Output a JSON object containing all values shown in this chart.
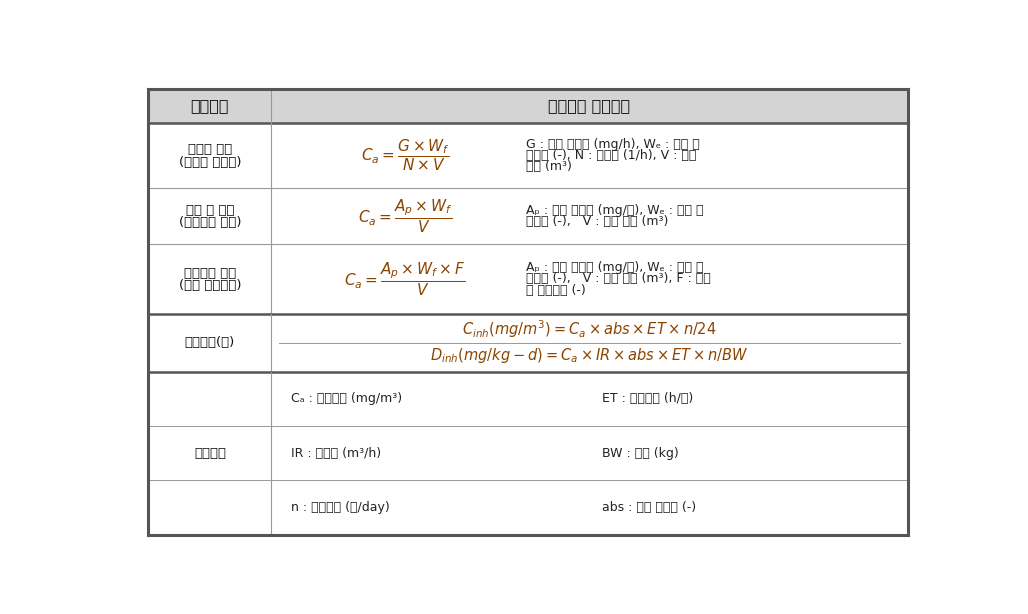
{
  "fig_width": 10.28,
  "fig_height": 6.14,
  "bg_color": "#ffffff",
  "header_bg": "#d4d4d4",
  "border_color": "#555555",
  "inner_line_color": "#999999",
  "formula_color": "#8B4500",
  "desc_color": "#222222",
  "header_text_color": "#111111",
  "scenario_text_color": "#111111",
  "header": {
    "col1": "시나리오",
    "col2": "흡입노출 알고리즘"
  },
  "rows": [
    {
      "scenario_line1": "지속적 방출",
      "scenario_line2": "(거치식 방향제)",
      "formula": "$C_a = \\dfrac{G \\times W_f}{N \\times V}$",
      "desc_lines": [
        "G : 제품 방출량 (mg/h), Wₑ : 제품 중",
        "성분비 (-), N : 환기율 (1/h), V : 공간",
        "체적 (m³)"
      ]
    },
    {
      "scenario_line1": "공기 중 분사",
      "scenario_line2": "(스프레이 사용)",
      "formula": "$C_a = \\dfrac{A_p \\times W_f}{V}$",
      "desc_lines": [
        "Aₚ : 제품 사용량 (mg/회), Wₑ : 제품 중",
        "성분비 (-),   V : 공간 체적 (m³)"
      ]
    },
    {
      "scenario_line1": "표면에서 휘발",
      "scenario_line2": "(욕실 세정작업)",
      "formula": "$C_a = \\dfrac{A_p \\times W_f \\times F}{V}$",
      "desc_lines": [
        "Aₚ : 제품 사용량 (mg/회), Wₑ : 제품 중",
        "성분비 (-),   V : 공간 체적 (m³), F : 공기",
        "중 방출비율 (-)"
      ]
    }
  ],
  "exposure": {
    "label": "노출농도(량)",
    "formula1": "$C_{inh}(mg/m^3) = C_a \\times abs \\times ET \\times n/24$",
    "formula2": "$D_{inh}(mg/kg-d) = C_a \\times IR \\times abs \\times ET \\times n/BW$"
  },
  "coeff": {
    "label": "노출계수",
    "items": [
      [
        "Cₐ : 공간농도 (mg/m³)",
        "ET : 노출시간 (h/회)"
      ],
      [
        "IR : 호흡률 (m³/h)",
        "BW : 체중 (kg)"
      ],
      [
        "n : 사용빈도 (회/day)",
        "abs : 체내 흡수율 (-)"
      ]
    ]
  }
}
